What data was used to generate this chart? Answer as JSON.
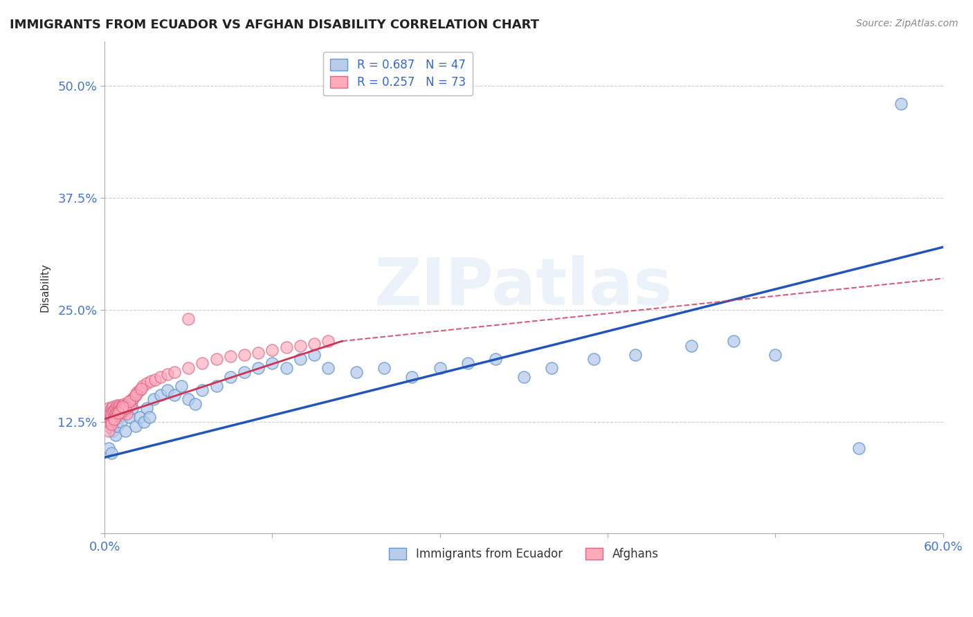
{
  "title": "IMMIGRANTS FROM ECUADOR VS AFGHAN DISABILITY CORRELATION CHART",
  "source": "Source: ZipAtlas.com",
  "ylabel": "Disability",
  "x_min": 0.0,
  "x_max": 0.6,
  "y_min": 0.0,
  "y_max": 0.55,
  "x_ticks": [
    0.0,
    0.12,
    0.24,
    0.36,
    0.48,
    0.6
  ],
  "x_tick_labels": [
    "0.0%",
    "",
    "",
    "",
    "",
    "60.0%"
  ],
  "y_ticks": [
    0.0,
    0.125,
    0.25,
    0.375,
    0.5
  ],
  "y_tick_labels": [
    "",
    "12.5%",
    "25.0%",
    "37.5%",
    "50.0%"
  ],
  "grid_color": "#cccccc",
  "background_color": "#ffffff",
  "blue_dot_face": "#b8ccec",
  "blue_dot_edge": "#6699cc",
  "pink_dot_face": "#ffaabb",
  "pink_dot_edge": "#dd6688",
  "trend_blue": "#2255bb",
  "trend_pink": "#cc3355",
  "R_blue": 0.687,
  "N_blue": 47,
  "R_pink": 0.257,
  "N_pink": 73,
  "legend_label_blue": "Immigrants from Ecuador",
  "legend_label_pink": "Afghans",
  "watermark_text": "ZIPatlas",
  "blue_scatter_x": [
    0.003,
    0.005,
    0.006,
    0.008,
    0.009,
    0.01,
    0.012,
    0.015,
    0.018,
    0.02,
    0.022,
    0.025,
    0.028,
    0.03,
    0.032,
    0.035,
    0.04,
    0.045,
    0.05,
    0.055,
    0.06,
    0.065,
    0.07,
    0.08,
    0.09,
    0.1,
    0.11,
    0.12,
    0.13,
    0.14,
    0.15,
    0.16,
    0.18,
    0.2,
    0.22,
    0.24,
    0.26,
    0.28,
    0.3,
    0.32,
    0.35,
    0.38,
    0.42,
    0.45,
    0.48,
    0.54,
    0.57
  ],
  "blue_scatter_y": [
    0.095,
    0.09,
    0.115,
    0.11,
    0.12,
    0.13,
    0.125,
    0.115,
    0.13,
    0.14,
    0.12,
    0.13,
    0.125,
    0.14,
    0.13,
    0.15,
    0.155,
    0.16,
    0.155,
    0.165,
    0.15,
    0.145,
    0.16,
    0.165,
    0.175,
    0.18,
    0.185,
    0.19,
    0.185,
    0.195,
    0.2,
    0.185,
    0.18,
    0.185,
    0.175,
    0.185,
    0.19,
    0.195,
    0.175,
    0.185,
    0.195,
    0.2,
    0.21,
    0.215,
    0.2,
    0.095,
    0.48
  ],
  "pink_scatter_x": [
    0.001,
    0.001,
    0.002,
    0.002,
    0.003,
    0.003,
    0.004,
    0.004,
    0.005,
    0.005,
    0.006,
    0.006,
    0.007,
    0.007,
    0.008,
    0.008,
    0.009,
    0.009,
    0.01,
    0.01,
    0.011,
    0.011,
    0.012,
    0.012,
    0.013,
    0.013,
    0.014,
    0.014,
    0.015,
    0.015,
    0.016,
    0.016,
    0.017,
    0.018,
    0.019,
    0.02,
    0.021,
    0.022,
    0.023,
    0.025,
    0.027,
    0.03,
    0.033,
    0.036,
    0.04,
    0.045,
    0.05,
    0.06,
    0.07,
    0.08,
    0.09,
    0.1,
    0.11,
    0.12,
    0.13,
    0.14,
    0.15,
    0.16,
    0.003,
    0.005,
    0.007,
    0.009,
    0.012,
    0.015,
    0.018,
    0.022,
    0.026,
    0.003,
    0.005,
    0.007,
    0.01,
    0.013,
    0.06
  ],
  "pink_scatter_y": [
    0.13,
    0.125,
    0.135,
    0.128,
    0.14,
    0.132,
    0.135,
    0.128,
    0.14,
    0.133,
    0.142,
    0.136,
    0.138,
    0.132,
    0.14,
    0.134,
    0.143,
    0.137,
    0.142,
    0.136,
    0.143,
    0.138,
    0.141,
    0.135,
    0.143,
    0.137,
    0.145,
    0.14,
    0.143,
    0.138,
    0.14,
    0.134,
    0.142,
    0.148,
    0.145,
    0.15,
    0.152,
    0.155,
    0.158,
    0.16,
    0.165,
    0.168,
    0.17,
    0.172,
    0.175,
    0.178,
    0.18,
    0.185,
    0.19,
    0.195,
    0.198,
    0.2,
    0.202,
    0.205,
    0.208,
    0.21,
    0.212,
    0.215,
    0.12,
    0.125,
    0.128,
    0.132,
    0.136,
    0.14,
    0.148,
    0.155,
    0.162,
    0.115,
    0.122,
    0.128,
    0.135,
    0.142,
    0.24
  ],
  "blue_trend_x": [
    0.0,
    0.6
  ],
  "blue_trend_y": [
    0.085,
    0.32
  ],
  "pink_trend_x": [
    0.0,
    0.17
  ],
  "pink_trend_y": [
    0.128,
    0.215
  ]
}
